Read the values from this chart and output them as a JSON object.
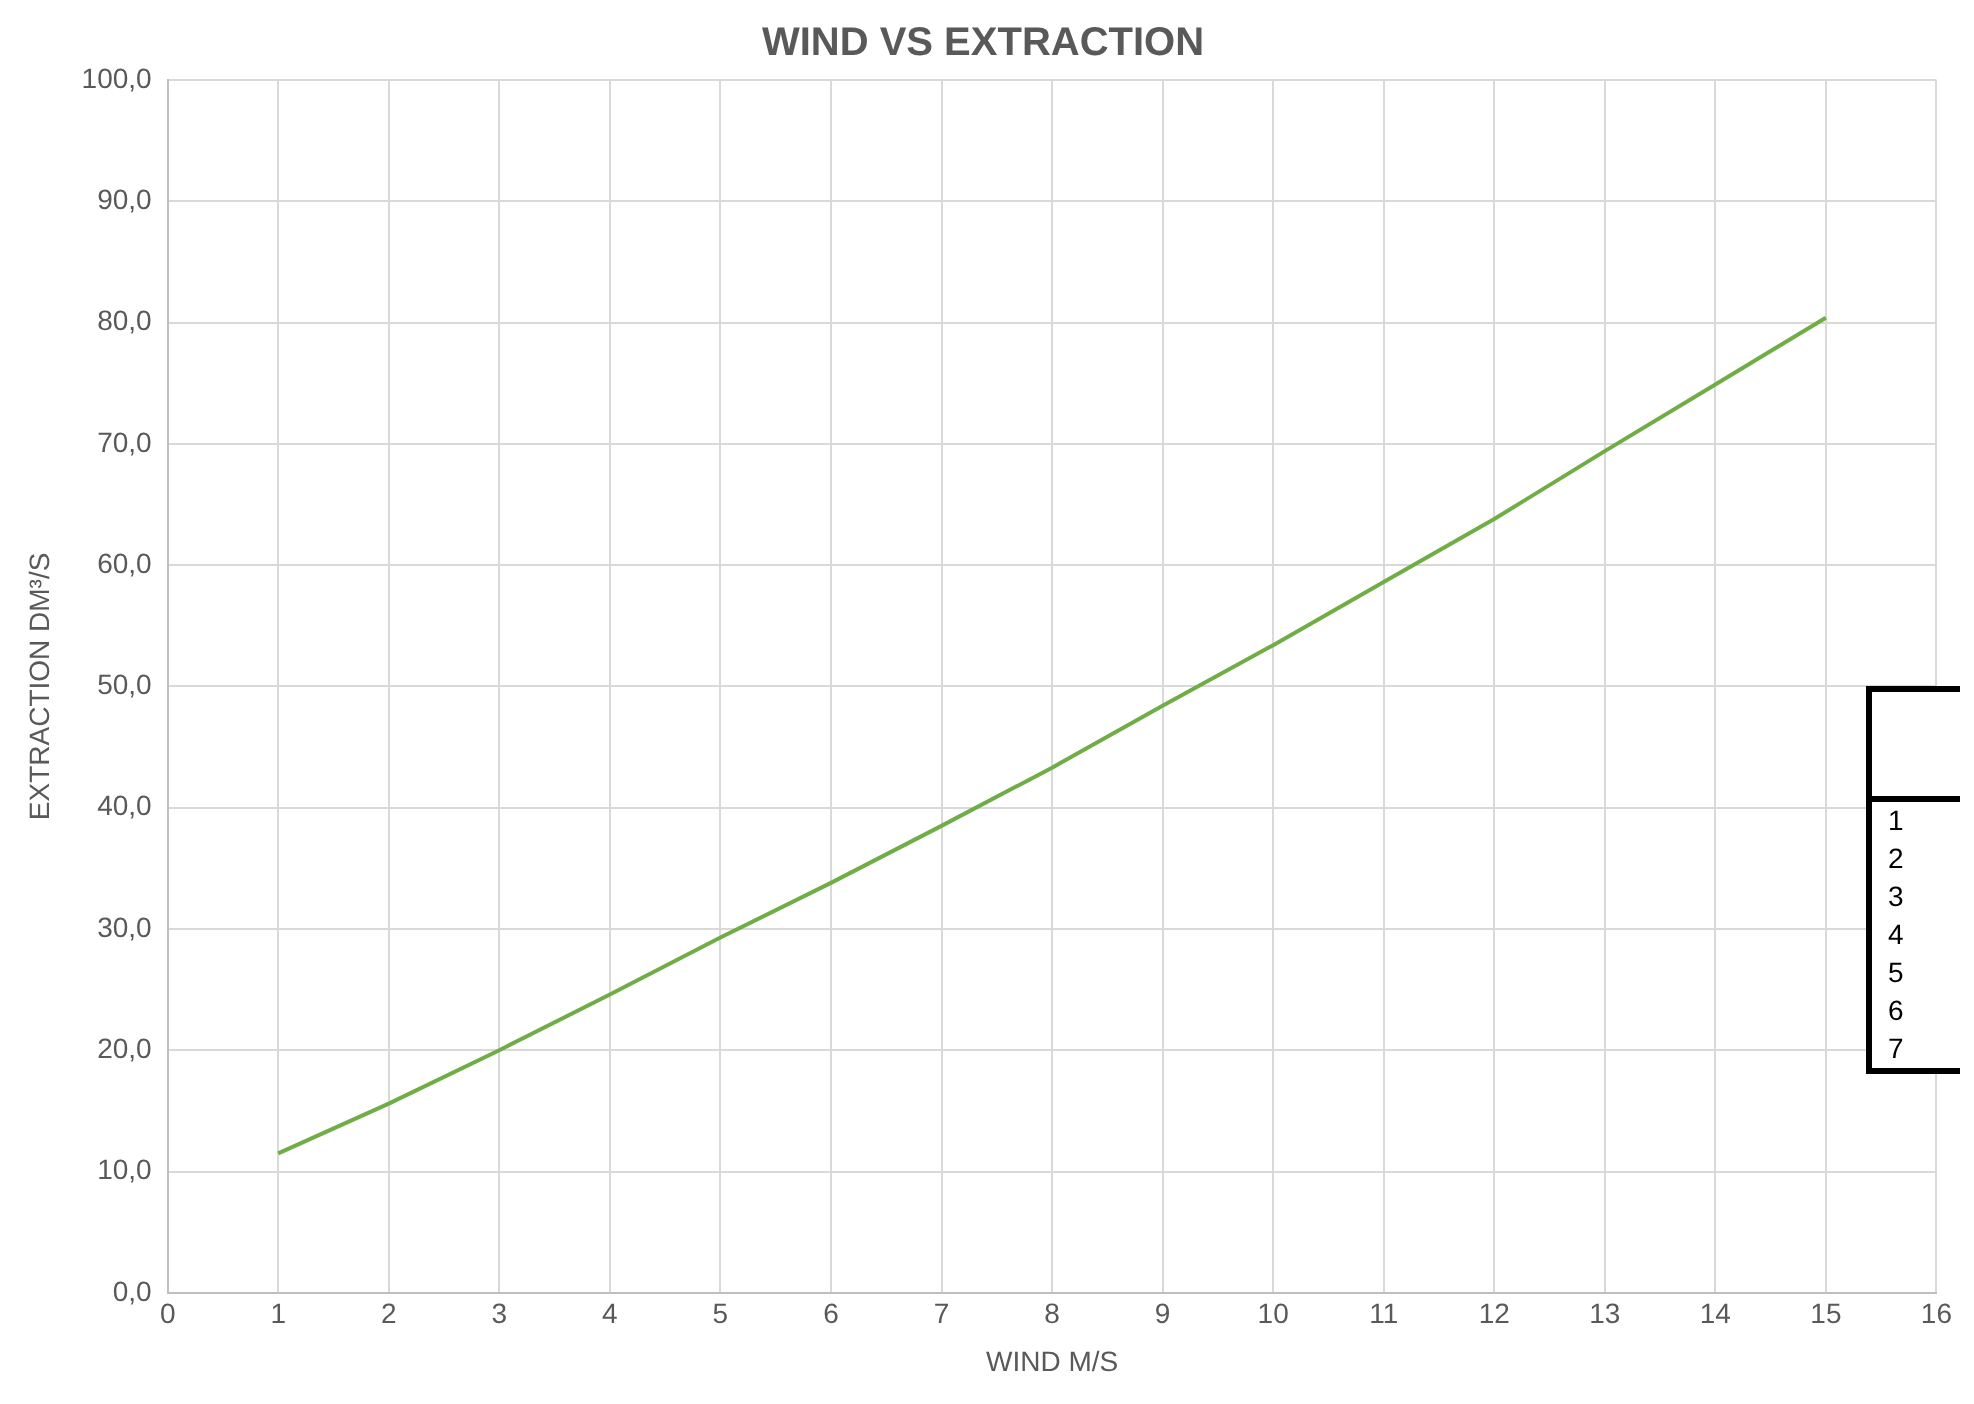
{
  "chart_data": {
    "type": "line",
    "title": "WIND VS EXTRACTION",
    "xlabel": "WIND M/S",
    "ylabel": "EXTRACTION DM³/S",
    "x": [
      1,
      2,
      3,
      4,
      5,
      6,
      7,
      8,
      9,
      10,
      11,
      12,
      13,
      14,
      15
    ],
    "series": [
      {
        "color": "#70ad47",
        "values": [
          11.5,
          15.6,
          20.0,
          24.6,
          29.3,
          33.8,
          38.5,
          43.3,
          48.4,
          53.4,
          58.6,
          63.8,
          69.4,
          74.9,
          80.4
        ]
      }
    ],
    "xlim": [
      0,
      16
    ],
    "xticks": [
      0,
      1,
      2,
      3,
      4,
      5,
      6,
      7,
      8,
      9,
      10,
      11,
      12,
      13,
      14,
      15,
      16
    ],
    "ylim": [
      0,
      100
    ],
    "yticks": [
      {
        "value": 0,
        "label": "0,0"
      },
      {
        "value": 10,
        "label": "10,0"
      },
      {
        "value": 20,
        "label": "20,0"
      },
      {
        "value": 30,
        "label": "30,0"
      },
      {
        "value": 40,
        "label": "40,0"
      },
      {
        "value": 50,
        "label": "50,0"
      },
      {
        "value": 60,
        "label": "60,0"
      },
      {
        "value": 70,
        "label": "70,0"
      },
      {
        "value": 80,
        "label": "80,0"
      },
      {
        "value": 90,
        "label": "90,0"
      },
      {
        "value": 100,
        "label": "100,0"
      }
    ],
    "grid": true,
    "marker": "none",
    "line_style": "solid",
    "legend": false,
    "annotations": [
      "1",
      "2",
      "3",
      "4",
      "5",
      "6",
      "7"
    ]
  }
}
